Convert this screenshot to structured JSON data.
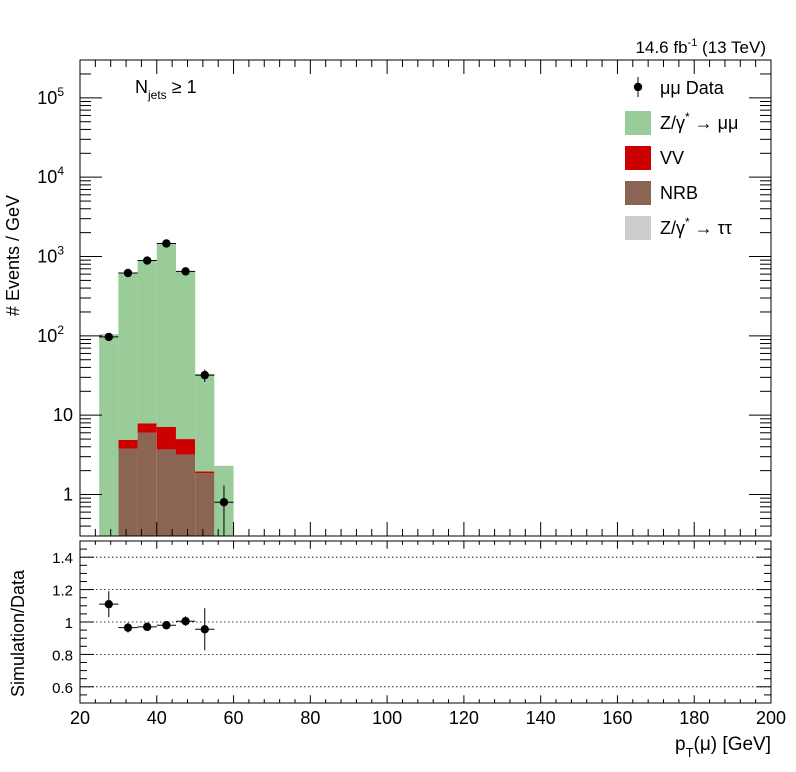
{
  "chart_data": {
    "type": "bar",
    "stacked": true,
    "lumi_label": "14.6 fb",
    "lumi_sup": "-1",
    "lumi_energy": " (13 TeV)",
    "category_label": "N",
    "category_sub": "jets",
    "category_cond": " ≥ 1",
    "top_ylabel": "# Events / GeV",
    "ratio_ylabel": "Simulation/Data",
    "xlabel_main": "p",
    "xlabel_sub": "T",
    "xlabel_rest": "(μ) [GeV]",
    "xlim": [
      20,
      200
    ],
    "ylim_log": [
      0.3,
      300000
    ],
    "ratio_ylim": [
      0.5,
      1.5
    ],
    "x_ticks": [
      "20",
      "40",
      "60",
      "80",
      "100",
      "120",
      "140",
      "160",
      "180",
      "200"
    ],
    "ratio_ticks": [
      "0.6",
      "0.8",
      "1",
      "1.2",
      "1.4"
    ],
    "bin_edges": [
      25,
      30,
      35,
      40,
      45,
      50,
      55,
      60
    ],
    "series": [
      {
        "name": "NRB",
        "color": "#8b6553",
        "values": [
          0,
          3.8,
          6.0,
          3.7,
          3.2,
          1.85,
          0
        ]
      },
      {
        "name": "VV",
        "color": "#cc0000",
        "values": [
          0,
          1.1,
          1.9,
          3.4,
          1.8,
          0.1,
          0
        ]
      },
      {
        "name": "Z/γ* → ττ",
        "color": "#cccccc",
        "values": [
          0,
          0,
          0,
          0,
          0,
          0,
          0
        ]
      },
      {
        "name": "Z/γ* → μμ",
        "color": "#99cc99",
        "values": [
          105,
          610,
          870,
          1430,
          650,
          31,
          2.3
        ]
      }
    ],
    "data": {
      "name": "μμ Data",
      "x": [
        27.5,
        32.5,
        37.5,
        42.5,
        47.5,
        52.5,
        57.5
      ],
      "y": [
        97,
        620,
        890,
        1460,
        650,
        32,
        0.8
      ],
      "yerr": [
        10,
        25,
        30,
        38,
        26,
        5.7,
        0.5
      ]
    },
    "ratio": {
      "x": [
        27.5,
        32.5,
        37.5,
        42.5,
        47.5,
        52.5
      ],
      "y": [
        1.11,
        0.965,
        0.97,
        0.98,
        1.005,
        0.955
      ],
      "yerr": [
        0.08,
        0.03,
        0.025,
        0.02,
        0.03,
        0.13
      ]
    },
    "legend": [
      {
        "key": "data",
        "label": "μμ Data"
      },
      {
        "key": "zmm",
        "label": "Z/γ",
        "sup": "*",
        "label2": " → μμ",
        "color": "#99cc99"
      },
      {
        "key": "vv",
        "label": "VV",
        "color": "#cc0000"
      },
      {
        "key": "nrb",
        "label": "NRB",
        "color": "#8b6553"
      },
      {
        "key": "ztt",
        "label": "Z/γ",
        "sup": "*",
        "label2": " → ττ",
        "color": "#cccccc"
      }
    ],
    "legend_position": "top-right",
    "ratio_gridlines": [
      0.6,
      0.8,
      1.0,
      1.2,
      1.4
    ]
  }
}
